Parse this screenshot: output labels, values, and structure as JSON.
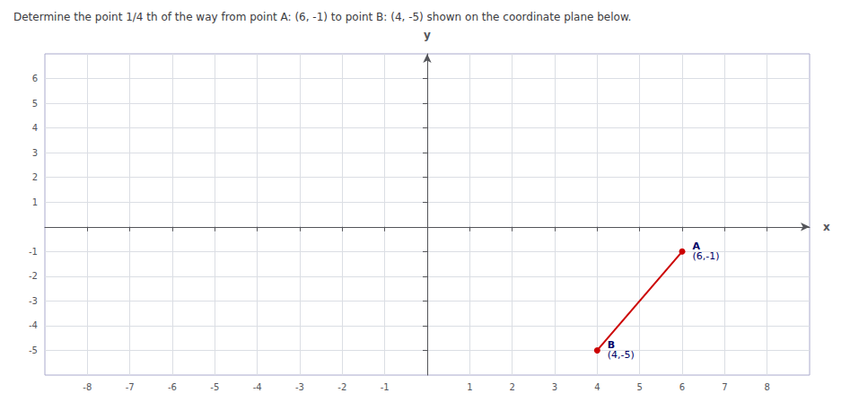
{
  "chart_data": {
    "type": "line",
    "title": "Determine the point 1/4 th of the way from point A: (6, -1) to point B: (4, -5) shown on the coordinate plane below.",
    "x_label": "x",
    "y_label": "y",
    "x": [
      6,
      4
    ],
    "values": [
      -1,
      -5
    ],
    "point_labels": [
      "A",
      "B"
    ],
    "value_labels": [
      "(6,-1)",
      "(4,-5)"
    ],
    "color": "#cc0000",
    "xlim": [
      -9,
      9
    ],
    "ylim": [
      -6,
      7
    ],
    "xticks": [
      -8,
      -7,
      -6,
      -5,
      -4,
      -3,
      -2,
      -1,
      1,
      2,
      3,
      4,
      5,
      6,
      7,
      8
    ],
    "yticks": [
      -5,
      -4,
      -3,
      -2,
      -1,
      1,
      2,
      3,
      4,
      5,
      6
    ],
    "grid": true,
    "data_labels": true
  }
}
